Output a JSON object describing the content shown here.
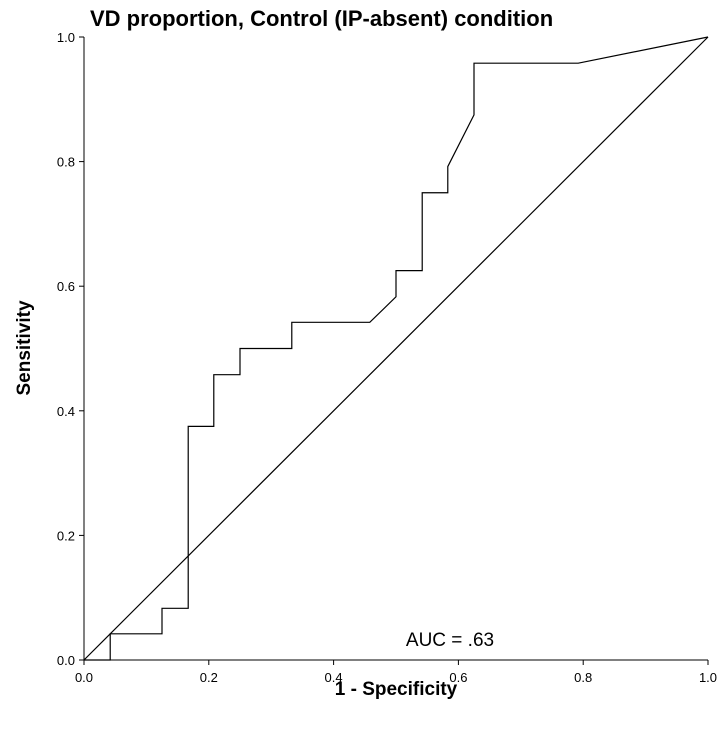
{
  "chart_data": {
    "type": "line",
    "title": "VD proportion, Control (IP-absent) condition",
    "xlabel": "1 - Specificity",
    "ylabel": "Sensitivity",
    "xlim": [
      0.0,
      1.0
    ],
    "ylim": [
      0.0,
      1.0
    ],
    "xticks": [
      "0.0",
      "0.2",
      "0.4",
      "0.6",
      "0.8",
      "1.0"
    ],
    "yticks": [
      "0.0",
      "0.2",
      "0.4",
      "0.6",
      "0.8",
      "1.0"
    ],
    "grid": false,
    "annotation": "AUC = .63",
    "series": [
      {
        "x": [
          0.0,
          0.042,
          0.042,
          0.125,
          0.125,
          0.167,
          0.167,
          0.208,
          0.208,
          0.25,
          0.25,
          0.333,
          0.333,
          0.458,
          0.5,
          0.5,
          0.542,
          0.542,
          0.583,
          0.583,
          0.625,
          0.625,
          0.792,
          1.0
        ],
        "y": [
          0.0,
          0.0,
          0.042,
          0.042,
          0.083,
          0.083,
          0.375,
          0.375,
          0.458,
          0.458,
          0.5,
          0.5,
          0.542,
          0.542,
          0.583,
          0.625,
          0.625,
          0.75,
          0.75,
          0.792,
          0.875,
          0.958,
          0.958,
          1.0
        ]
      },
      {
        "x": [
          0.0,
          1.0
        ],
        "y": [
          0.0,
          1.0
        ]
      }
    ]
  }
}
